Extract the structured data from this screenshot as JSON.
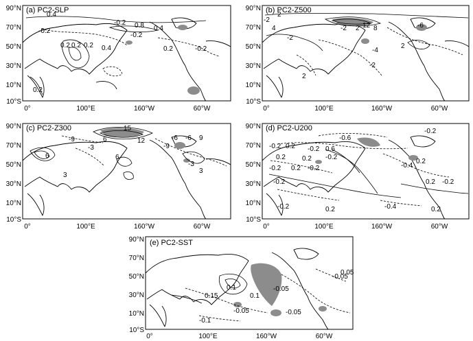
{
  "panels": [
    {
      "id": "a",
      "title": "(a) PC2-SLP",
      "lat_ticks": [
        "90°N",
        "70°N",
        "50°N",
        "30°N",
        "10°N",
        "10°S"
      ],
      "lon_ticks": [
        "0°",
        "100°E",
        "160°W",
        "60°W"
      ],
      "contour_labels": [
        "0.4",
        "0.8",
        "0.4",
        "-0.2",
        "-0.2",
        "-0.2",
        "0.2",
        "0.2",
        "0.2",
        "0.4",
        "0.2",
        "-0.2",
        "0.2"
      ]
    },
    {
      "id": "b",
      "title": "(b) PC2-Z500",
      "lat_ticks": [
        "90°N",
        "70°N",
        "50°N",
        "30°N",
        "10°N",
        "10°S"
      ],
      "lon_ticks": [
        "0°",
        "100°E",
        "160°W",
        "60°W"
      ],
      "contour_labels": [
        "2",
        "-2",
        "4",
        "-2",
        "2",
        "12",
        "8",
        "-6",
        "-2",
        "-4",
        "2",
        "-2",
        "2"
      ]
    },
    {
      "id": "c",
      "title": "(c) PC2-Z300",
      "lat_ticks": [
        "90°N",
        "70°N",
        "50°N",
        "30°N",
        "10°N",
        "10°S"
      ],
      "lon_ticks": [
        "0°",
        "100°E",
        "160°W",
        "60°W"
      ],
      "contour_labels": [
        "15",
        "-9",
        "6",
        "12",
        "-3",
        "6",
        "-6",
        "-6",
        "6",
        "3",
        "-9",
        "-3",
        "3",
        "9"
      ]
    },
    {
      "id": "d",
      "title": "(d) PC2-U200",
      "lat_ticks": [
        "90°N",
        "70°N",
        "50°N",
        "30°N",
        "10°N",
        "10°S"
      ],
      "lon_ticks": [
        "0°",
        "100°E",
        "160°W",
        "60°W"
      ],
      "contour_labels": [
        "-0.6",
        "-0.2",
        "0.2",
        "-0.2",
        "0.6",
        "-0.2",
        "0.2",
        "0.2",
        "-0.2",
        "-0.4",
        "0.2",
        "-0.2",
        "0.2",
        "-0.2",
        "-0.2",
        "0.2",
        "-0.4",
        "0.2",
        "-0.2",
        "-0.2",
        "0.2"
      ]
    },
    {
      "id": "e",
      "title": "(e) PC2-SST",
      "lat_ticks": [
        "90°N",
        "70°N",
        "50°N",
        "30°N",
        "10°N",
        "10°S"
      ],
      "lon_ticks": [
        "0°",
        "100°E",
        "160°W",
        "60°W"
      ],
      "contour_labels": [
        "0.15",
        "0.1",
        "-0.05",
        "0.05",
        "-0.05",
        "-0.1",
        "0.1",
        "-0.05",
        "-0.05"
      ]
    }
  ]
}
